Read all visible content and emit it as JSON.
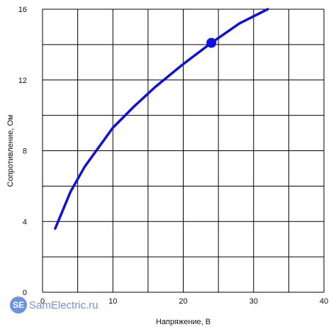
{
  "chart_data": {
    "type": "line",
    "xlabel": "Напряжение, В",
    "ylabel": "Сопротивление, Ом",
    "xlim": [
      0,
      40
    ],
    "ylim": [
      0,
      16
    ],
    "x_ticks": [
      0,
      10,
      20,
      30,
      40
    ],
    "y_ticks": [
      0,
      4,
      8,
      12,
      16
    ],
    "grid": true,
    "grid_step_x": 5,
    "grid_step_y": 2,
    "series": [
      {
        "color": "#1010dd",
        "x": [
          1.8,
          4,
          6,
          10,
          13,
          16,
          20,
          24,
          28,
          32
        ],
        "y": [
          3.6,
          5.7,
          7.1,
          9.3,
          10.5,
          11.6,
          12.9,
          14.1,
          15.2,
          16.0
        ]
      }
    ],
    "highlight_point": {
      "x": 24,
      "y": 14.1,
      "color": "#1010dd"
    }
  },
  "watermark": {
    "badge": "SE",
    "text": "SamElectric.ru",
    "color": "#3b6fd6"
  }
}
